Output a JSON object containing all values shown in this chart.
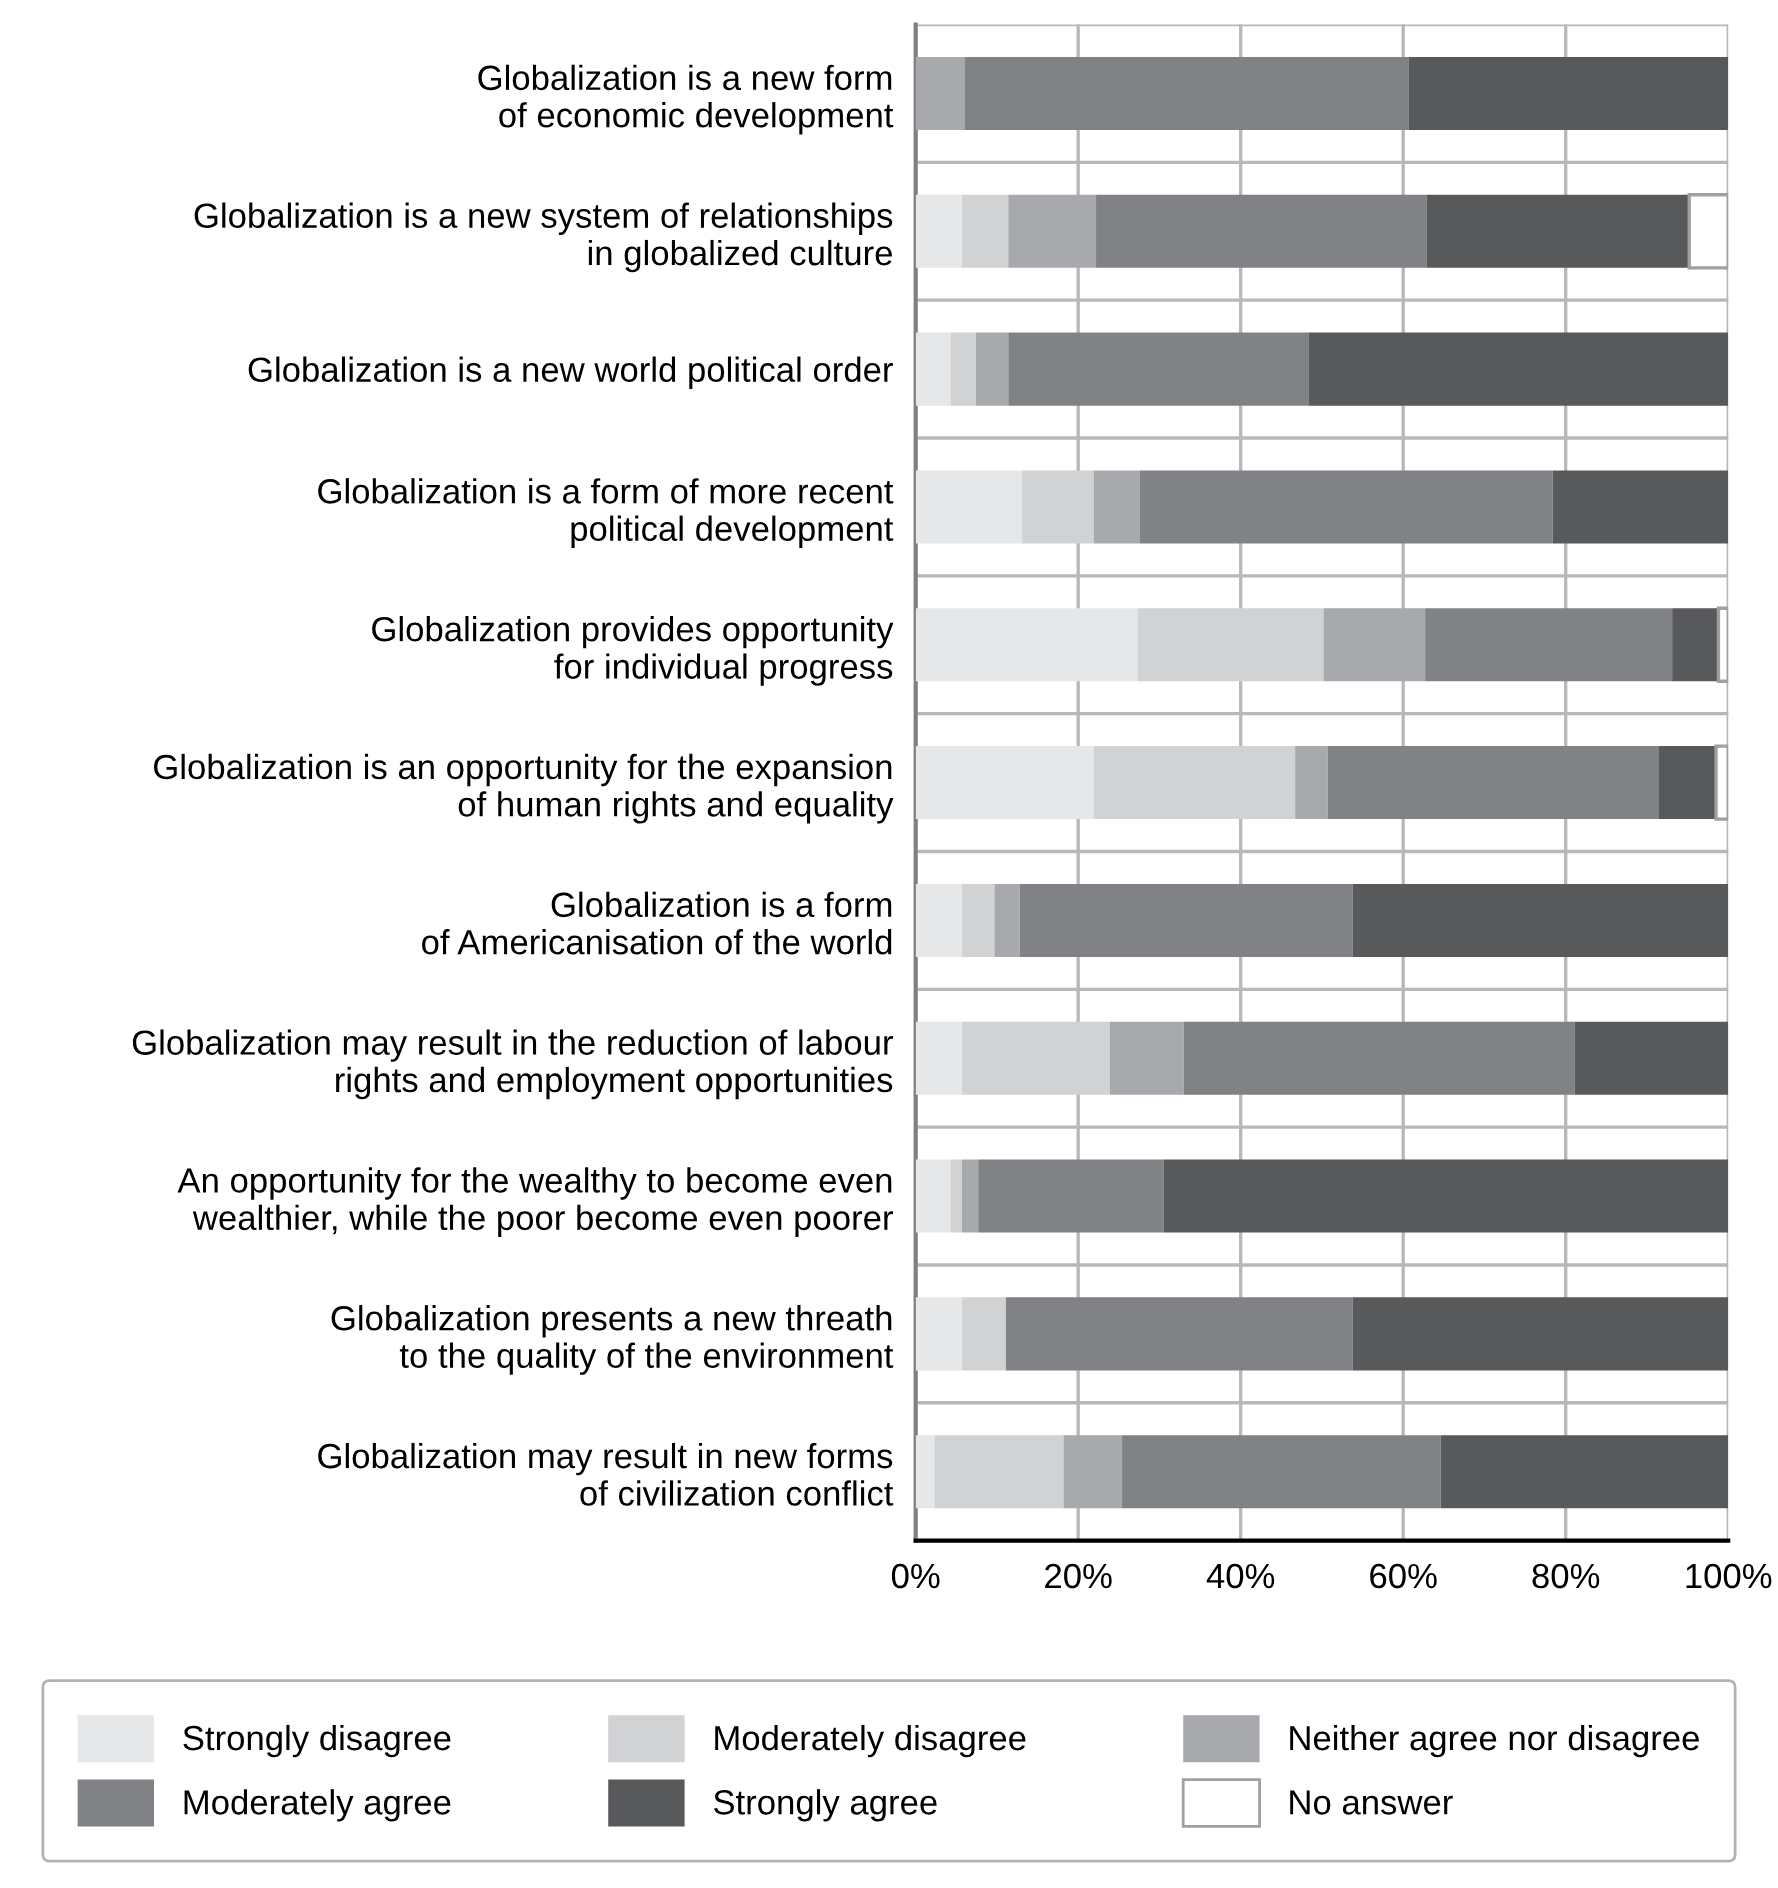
{
  "chart_data": {
    "type": "bar",
    "orientation": "horizontal",
    "stacked": true,
    "categories": [
      "Globalization is a new form\nof economic development",
      "Globalization is a new system of relationships\nin globalized culture",
      "Globalization is a new world political order",
      "Globalization is a form of more recent\npolitical development",
      "Globalization provides opportunity\nfor individual progress",
      "Globalization is an opportunity for the expansion\nof human rights and equality",
      "Globalization is a form\nof Americanisation of the world",
      "Globalization may result in the reduction of labour\nrights and employment opportunities",
      "An opportunity for the wealthy to become even\nwealthier, while the poor become even poorer",
      "Globalization presents a new threath\nto the quality of the environment",
      "Globalization may result in new forms\nof civilization conflict"
    ],
    "series": [
      {
        "name": "Strongly disagree",
        "color": "#e6e7e8",
        "values": [
          0,
          5.7,
          4.3,
          13.1,
          27.3,
          21.9,
          5.7,
          5.7,
          4.3,
          5.7,
          2.3
        ]
      },
      {
        "name": "Moderately disagree",
        "color": "#d1d2d4",
        "values": [
          0,
          5.7,
          3.1,
          8.8,
          22.9,
          24.8,
          4.0,
          18.2,
          1.4,
          5.4,
          15.9
        ]
      },
      {
        "name": "Neither agree nor disagree",
        "color": "#a7a9ac",
        "values": [
          6.0,
          10.8,
          4.0,
          5.7,
          12.5,
          4.0,
          3.1,
          9.1,
          2.0,
          0,
          7.2
        ]
      },
      {
        "name": "Moderately agree",
        "color": "#808285",
        "values": [
          54.7,
          40.7,
          37.0,
          50.8,
          30.4,
          40.7,
          41.0,
          48.1,
          22.8,
          42.7,
          39.2
        ]
      },
      {
        "name": "Strongly agree",
        "color": "#58595b",
        "values": [
          39.3,
          32.3,
          51.6,
          21.6,
          5.7,
          7.1,
          46.2,
          18.9,
          69.5,
          46.2,
          35.4
        ]
      },
      {
        "name": "No answer",
        "color": "#ffffff",
        "values": [
          0,
          4.8,
          0,
          0,
          1.2,
          1.5,
          0,
          0,
          0,
          0,
          0
        ]
      }
    ],
    "xlim": [
      0,
      100
    ],
    "xticks": [
      {
        "value": 0,
        "label": "0%"
      },
      {
        "value": 20,
        "label": "20%"
      },
      {
        "value": 40,
        "label": "40%"
      },
      {
        "value": 60,
        "label": "60%"
      },
      {
        "value": 80,
        "label": "80%"
      },
      {
        "value": 100,
        "label": "100%"
      }
    ],
    "grid": "x",
    "legend": "bottom"
  }
}
